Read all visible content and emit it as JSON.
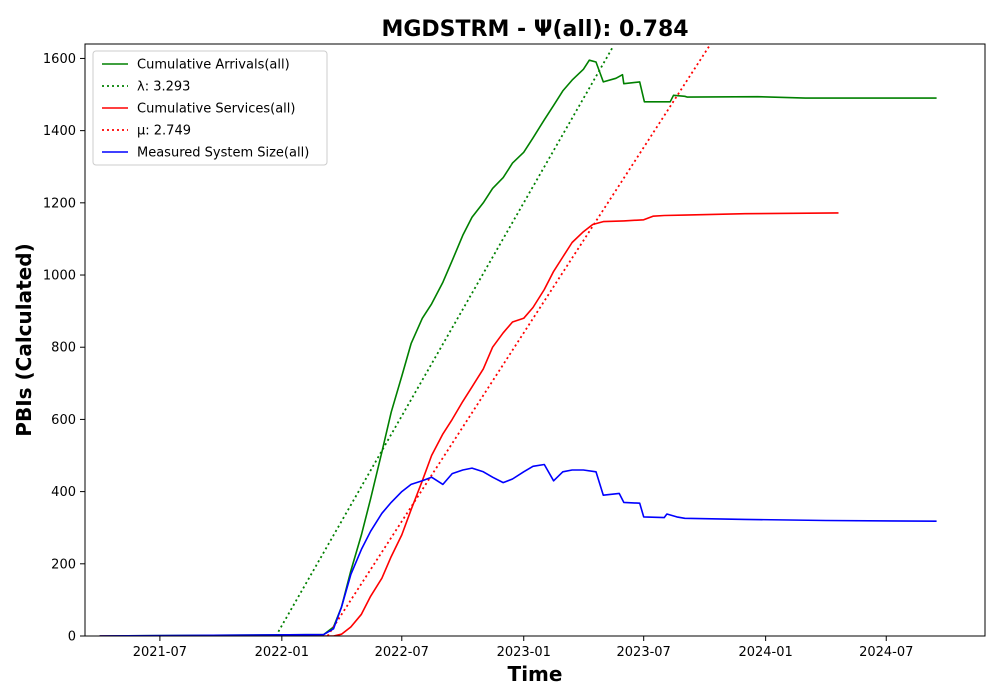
{
  "chart_data": {
    "type": "line",
    "title": "MGDSTRM -  Ψ(all): 0.784",
    "xlabel": "Time",
    "ylabel": "PBIs (Calculated)",
    "xlim": [
      "2021-03-10",
      "2024-11-27"
    ],
    "ylim": [
      0,
      1640
    ],
    "x_ticks": [
      "2021-07",
      "2022-01",
      "2022-07",
      "2023-01",
      "2023-07",
      "2024-01",
      "2024-07"
    ],
    "y_ticks": [
      0,
      200,
      400,
      600,
      800,
      1000,
      1200,
      1400,
      1600
    ],
    "grid": false,
    "legend_position": "top-left",
    "series": [
      {
        "name": "Cumulative Arrivals(all)",
        "color": "#008000",
        "style": "solid",
        "points": [
          [
            "2021-04-01",
            0
          ],
          [
            "2022-03-05",
            4
          ],
          [
            "2022-03-20",
            25
          ],
          [
            "2022-04-01",
            80
          ],
          [
            "2022-04-15",
            180
          ],
          [
            "2022-05-01",
            280
          ],
          [
            "2022-05-15",
            380
          ],
          [
            "2022-06-01",
            510
          ],
          [
            "2022-06-15",
            620
          ],
          [
            "2022-07-01",
            720
          ],
          [
            "2022-07-15",
            810
          ],
          [
            "2022-08-01",
            880
          ],
          [
            "2022-08-15",
            920
          ],
          [
            "2022-09-01",
            980
          ],
          [
            "2022-09-15",
            1040
          ],
          [
            "2022-10-01",
            1110
          ],
          [
            "2022-10-15",
            1160
          ],
          [
            "2022-11-01",
            1200
          ],
          [
            "2022-11-15",
            1240
          ],
          [
            "2022-12-01",
            1270
          ],
          [
            "2022-12-15",
            1310
          ],
          [
            "2023-01-01",
            1340
          ],
          [
            "2023-01-15",
            1380
          ],
          [
            "2023-02-01",
            1430
          ],
          [
            "2023-02-15",
            1470
          ],
          [
            "2023-03-01",
            1510
          ],
          [
            "2023-03-15",
            1540
          ],
          [
            "2023-04-01",
            1570
          ],
          [
            "2023-04-10",
            1595
          ],
          [
            "2023-04-20",
            1590
          ],
          [
            "2023-05-01",
            1535
          ],
          [
            "2023-05-20",
            1545
          ],
          [
            "2023-05-30",
            1555
          ],
          [
            "2023-06-01",
            1530
          ],
          [
            "2023-06-25",
            1535
          ],
          [
            "2023-07-02",
            1480
          ],
          [
            "2023-08-10",
            1480
          ],
          [
            "2023-08-15",
            1498
          ],
          [
            "2023-09-01",
            1495
          ],
          [
            "2023-09-05",
            1493
          ],
          [
            "2023-12-20",
            1494
          ],
          [
            "2024-03-01",
            1490
          ],
          [
            "2024-09-15",
            1490
          ]
        ]
      },
      {
        "name": "λ: 3.293",
        "color": "#008000",
        "style": "dotted",
        "points": [
          [
            "2021-12-23",
            0
          ],
          [
            "2023-05-15",
            1630
          ]
        ]
      },
      {
        "name": "Cumulative Services(all)",
        "color": "#ff0000",
        "style": "solid",
        "points": [
          [
            "2021-04-01",
            0
          ],
          [
            "2022-03-20",
            0
          ],
          [
            "2022-04-01",
            5
          ],
          [
            "2022-04-15",
            25
          ],
          [
            "2022-05-01",
            60
          ],
          [
            "2022-05-15",
            110
          ],
          [
            "2022-06-01",
            160
          ],
          [
            "2022-06-15",
            220
          ],
          [
            "2022-07-01",
            280
          ],
          [
            "2022-07-15",
            350
          ],
          [
            "2022-08-01",
            430
          ],
          [
            "2022-08-15",
            500
          ],
          [
            "2022-09-01",
            560
          ],
          [
            "2022-09-15",
            600
          ],
          [
            "2022-10-01",
            650
          ],
          [
            "2022-10-15",
            690
          ],
          [
            "2022-11-01",
            740
          ],
          [
            "2022-11-15",
            800
          ],
          [
            "2022-12-01",
            840
          ],
          [
            "2022-12-15",
            870
          ],
          [
            "2023-01-01",
            880
          ],
          [
            "2023-01-15",
            910
          ],
          [
            "2023-02-01",
            960
          ],
          [
            "2023-02-15",
            1010
          ],
          [
            "2023-03-01",
            1050
          ],
          [
            "2023-03-15",
            1090
          ],
          [
            "2023-04-01",
            1120
          ],
          [
            "2023-04-15",
            1140
          ],
          [
            "2023-05-01",
            1148
          ],
          [
            "2023-06-01",
            1150
          ],
          [
            "2023-07-01",
            1153
          ],
          [
            "2023-07-15",
            1163
          ],
          [
            "2023-08-01",
            1165
          ],
          [
            "2023-09-01",
            1166
          ],
          [
            "2023-12-01",
            1170
          ],
          [
            "2024-04-20",
            1172
          ]
        ]
      },
      {
        "name": "μ: 2.749",
        "color": "#ff0000",
        "style": "dotted",
        "points": [
          [
            "2022-03-11",
            0
          ],
          [
            "2023-10-10",
            1640
          ]
        ]
      },
      {
        "name": "Measured System Size(all)",
        "color": "#0000ff",
        "style": "solid",
        "points": [
          [
            "2021-04-01",
            0
          ],
          [
            "2022-03-05",
            4
          ],
          [
            "2022-03-20",
            20
          ],
          [
            "2022-04-01",
            80
          ],
          [
            "2022-04-15",
            170
          ],
          [
            "2022-05-01",
            240
          ],
          [
            "2022-05-15",
            290
          ],
          [
            "2022-06-01",
            340
          ],
          [
            "2022-06-15",
            370
          ],
          [
            "2022-07-01",
            400
          ],
          [
            "2022-07-15",
            420
          ],
          [
            "2022-08-01",
            430
          ],
          [
            "2022-08-15",
            440
          ],
          [
            "2022-09-01",
            420
          ],
          [
            "2022-09-15",
            450
          ],
          [
            "2022-10-01",
            460
          ],
          [
            "2022-10-15",
            465
          ],
          [
            "2022-11-01",
            455
          ],
          [
            "2022-11-15",
            440
          ],
          [
            "2022-12-01",
            425
          ],
          [
            "2022-12-15",
            435
          ],
          [
            "2023-01-01",
            455
          ],
          [
            "2023-01-15",
            470
          ],
          [
            "2023-02-01",
            475
          ],
          [
            "2023-02-15",
            430
          ],
          [
            "2023-03-01",
            455
          ],
          [
            "2023-03-15",
            460
          ],
          [
            "2023-04-01",
            460
          ],
          [
            "2023-04-20",
            455
          ],
          [
            "2023-05-01",
            390
          ],
          [
            "2023-05-25",
            395
          ],
          [
            "2023-06-01",
            370
          ],
          [
            "2023-06-25",
            368
          ],
          [
            "2023-07-01",
            330
          ],
          [
            "2023-08-01",
            328
          ],
          [
            "2023-08-05",
            338
          ],
          [
            "2023-08-20",
            330
          ],
          [
            "2023-09-01",
            326
          ],
          [
            "2023-12-01",
            323
          ],
          [
            "2024-04-01",
            320
          ],
          [
            "2024-09-15",
            318
          ]
        ]
      }
    ]
  }
}
